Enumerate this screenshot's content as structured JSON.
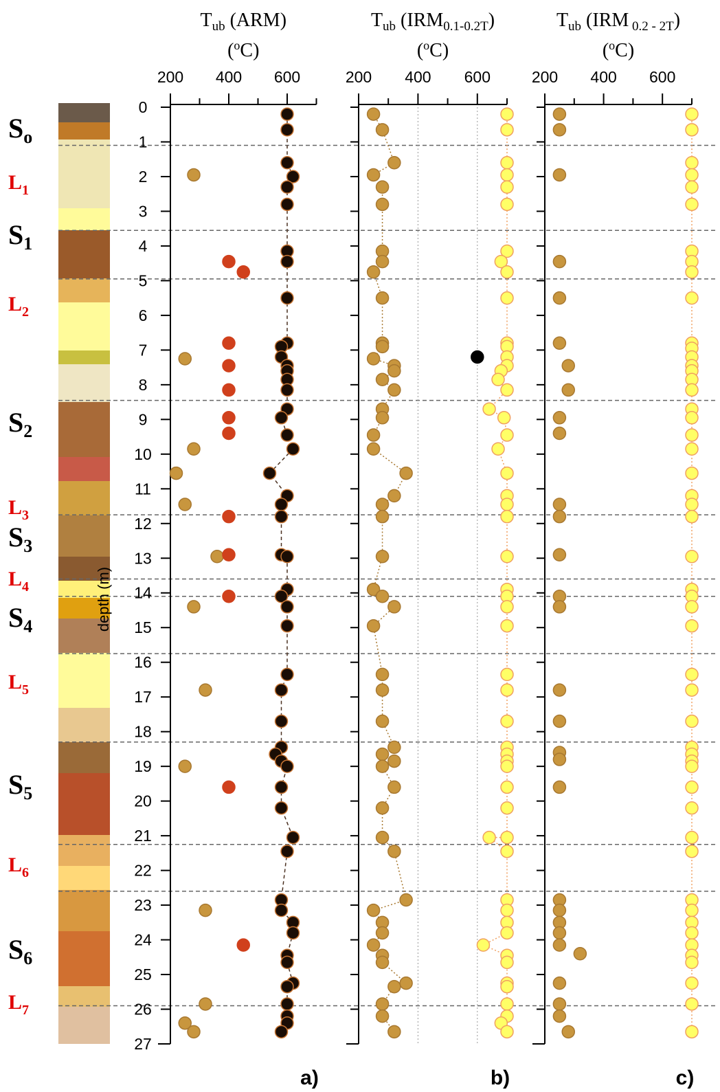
{
  "chart_data": [
    {
      "type": "scatter",
      "letter": "a)",
      "title_parts": [
        {
          "t": "T"
        },
        {
          "t": "ub",
          "sub": true
        },
        {
          "t": " (ARM)"
        }
      ],
      "unit_parts": [
        {
          "t": "("
        },
        {
          "t": "o",
          "sup": true
        },
        {
          "t": "C)"
        }
      ],
      "ylabel": "depth (m)",
      "xlim": [
        200,
        700
      ],
      "xticks": [
        200,
        400,
        600
      ],
      "xminor": [
        300,
        500,
        700
      ],
      "ylim": [
        0,
        27
      ],
      "yticks": [
        0,
        1,
        2,
        3,
        4,
        5,
        6,
        7,
        8,
        9,
        10,
        11,
        12,
        13,
        14,
        15,
        16,
        17,
        18,
        19,
        20,
        21,
        22,
        23,
        24,
        25,
        26,
        27
      ],
      "series": [
        {
          "color": "#c8963e",
          "edge": "#a87830",
          "x": [
            280,
            250,
            280,
            220,
            250,
            360,
            280,
            320,
            250,
            320,
            320,
            250,
            280
          ],
          "y": [
            1.95,
            7.25,
            9.85,
            10.55,
            11.45,
            12.95,
            14.4,
            16.8,
            19.0,
            23.15,
            25.85,
            26.4,
            26.65
          ]
        },
        {
          "color": "#d0401c",
          "edge": "#d0401c",
          "x": [
            400,
            450,
            400,
            400,
            400,
            400,
            400,
            400,
            400,
            400,
            400,
            450
          ],
          "y": [
            4.45,
            4.75,
            6.8,
            7.45,
            8.15,
            8.95,
            9.4,
            11.8,
            12.9,
            14.1,
            19.6,
            24.15
          ]
        },
        {
          "color": "#1a0d05",
          "edge": "#c87533",
          "line": "dashed",
          "x": [
            600,
            600,
            600,
            620,
            600,
            600,
            600,
            600,
            600,
            600,
            580,
            580,
            600,
            600,
            600,
            600,
            600,
            580,
            600,
            620,
            540,
            600,
            580,
            580,
            580,
            600,
            600,
            580,
            600,
            600,
            600,
            580,
            580,
            580,
            560,
            580,
            600,
            580,
            580,
            620,
            600,
            580,
            580,
            620,
            620,
            600,
            600,
            620,
            600,
            600,
            600,
            600,
            580
          ],
          "y": [
            0.2,
            0.65,
            1.6,
            2.0,
            2.3,
            2.8,
            4.15,
            4.45,
            5.5,
            6.8,
            6.9,
            7.2,
            7.45,
            7.6,
            7.85,
            8.15,
            8.7,
            8.95,
            9.45,
            9.85,
            10.55,
            11.2,
            11.45,
            11.8,
            12.9,
            12.95,
            13.9,
            14.1,
            14.4,
            14.95,
            16.35,
            16.8,
            17.7,
            18.45,
            18.65,
            18.85,
            19.0,
            19.6,
            20.2,
            21.05,
            21.45,
            22.85,
            23.15,
            23.5,
            23.8,
            24.45,
            24.65,
            25.25,
            25.35,
            25.85,
            26.2,
            26.4,
            26.65
          ]
        }
      ]
    },
    {
      "type": "scatter",
      "letter": "b)",
      "title_parts": [
        {
          "t": "T"
        },
        {
          "t": "ub",
          "sub": true
        },
        {
          "t": " (IRM"
        },
        {
          "t": "0.1-0.2T",
          "sub": true
        },
        {
          "t": ")"
        }
      ],
      "unit_parts": [
        {
          "t": "("
        },
        {
          "t": "o",
          "sup": true
        },
        {
          "t": "C)"
        }
      ],
      "xlim": [
        200,
        700
      ],
      "xticks": [
        200,
        400,
        600
      ],
      "xminor": [
        300,
        500,
        700
      ],
      "xgrid": [
        400,
        600
      ],
      "ylim": [
        0,
        27
      ],
      "series": [
        {
          "color": "#c8963e",
          "edge": "#a87830",
          "line": "dotted",
          "x": [
            250,
            280,
            320,
            250,
            280,
            280,
            280,
            280,
            250,
            280,
            280,
            280,
            250,
            320,
            320,
            280,
            320,
            280,
            280,
            250,
            250,
            360,
            320,
            280,
            280,
            280,
            250,
            280,
            320,
            250,
            280,
            280,
            280,
            320,
            280,
            320,
            280,
            320,
            280,
            280,
            320,
            360,
            250,
            280,
            280,
            250,
            280,
            280,
            360,
            320,
            280,
            280,
            320
          ],
          "y": [
            0.2,
            0.65,
            1.6,
            1.95,
            2.3,
            2.8,
            4.15,
            4.45,
            4.75,
            5.5,
            6.8,
            6.9,
            7.25,
            7.45,
            7.6,
            7.85,
            8.15,
            8.7,
            8.95,
            9.45,
            9.85,
            10.55,
            11.2,
            11.45,
            11.8,
            12.95,
            13.9,
            14.1,
            14.4,
            14.95,
            16.35,
            16.8,
            17.7,
            18.45,
            18.65,
            18.85,
            19.0,
            19.6,
            20.2,
            21.05,
            21.45,
            22.85,
            23.15,
            23.5,
            23.8,
            24.15,
            24.45,
            24.65,
            25.25,
            25.35,
            25.85,
            26.2,
            26.65
          ]
        },
        {
          "color": "#ffff66",
          "edge": "#f0a060",
          "line": "dotted",
          "x": [
            700,
            700,
            700,
            700,
            700,
            700,
            700,
            680,
            700,
            700,
            700,
            700,
            700,
            700,
            680,
            670,
            700,
            640,
            690,
            700,
            670,
            700,
            700,
            700,
            700,
            700,
            700,
            700,
            700,
            700,
            700,
            700,
            700,
            700,
            700,
            700,
            700,
            700,
            700,
            700,
            640,
            700,
            700,
            700,
            700,
            700,
            620,
            700,
            700,
            700,
            700,
            700,
            700,
            680,
            700
          ],
          "y": [
            0.2,
            0.65,
            1.6,
            1.95,
            2.3,
            2.8,
            4.15,
            4.45,
            4.75,
            5.5,
            6.8,
            6.9,
            7.2,
            7.45,
            7.6,
            7.85,
            8.15,
            8.7,
            8.95,
            9.45,
            9.85,
            10.55,
            11.2,
            11.45,
            11.8,
            12.95,
            13.9,
            14.1,
            14.4,
            14.95,
            16.35,
            16.8,
            17.7,
            18.45,
            18.65,
            18.85,
            19.0,
            19.6,
            20.2,
            21.05,
            21.05,
            21.45,
            22.85,
            23.15,
            23.5,
            23.8,
            24.15,
            24.45,
            24.65,
            25.25,
            25.35,
            25.85,
            26.2,
            26.4,
            26.65
          ]
        },
        {
          "color": "#000000",
          "edge": "#000000",
          "x": [
            600
          ],
          "y": [
            7.2
          ]
        }
      ]
    },
    {
      "type": "scatter",
      "letter": "c)",
      "title_parts": [
        {
          "t": "T"
        },
        {
          "t": "ub",
          "sub": true
        },
        {
          "t": " (IRM"
        },
        {
          "t": " 0.2 - 2T",
          "sub": true
        },
        {
          "t": ")"
        }
      ],
      "unit_parts": [
        {
          "t": "("
        },
        {
          "t": "o",
          "sup": true
        },
        {
          "t": "C)"
        }
      ],
      "xlim": [
        200,
        700
      ],
      "xticks": [
        200,
        400,
        600
      ],
      "xminor": [
        300,
        500,
        700
      ],
      "ylim": [
        0,
        27
      ],
      "series": [
        {
          "color": "#c8963e",
          "edge": "#a87830",
          "x": [
            250,
            250,
            250,
            250,
            250,
            250,
            280,
            280,
            250,
            250,
            250,
            250,
            250,
            250,
            250,
            250,
            250,
            250,
            250,
            250,
            250,
            250,
            250,
            250,
            250,
            320,
            250,
            250,
            250,
            280
          ],
          "y": [
            0.2,
            0.65,
            1.95,
            4.45,
            5.5,
            6.8,
            7.45,
            8.15,
            8.95,
            9.4,
            11.45,
            11.8,
            12.9,
            14.1,
            14.4,
            16.8,
            17.7,
            18.6,
            18.8,
            19.6,
            22.85,
            23.15,
            23.5,
            23.8,
            24.15,
            24.4,
            25.25,
            25.85,
            26.2,
            26.65
          ]
        },
        {
          "color": "#ffff66",
          "edge": "#f0a060",
          "line": "dotted",
          "x": [
            700,
            700,
            700,
            700,
            700,
            700,
            700,
            700,
            700,
            700,
            700,
            700,
            700,
            700,
            700,
            700,
            700,
            700,
            700,
            700,
            700,
            700,
            700,
            700,
            700,
            700,
            700,
            700,
            700,
            700,
            700,
            700,
            700,
            700,
            700,
            700,
            700,
            700,
            700,
            700,
            700,
            700,
            700,
            700,
            700,
            700,
            700,
            700,
            700,
            700,
            700
          ],
          "y": [
            0.2,
            0.65,
            1.6,
            1.95,
            2.3,
            2.8,
            4.15,
            4.45,
            4.75,
            5.5,
            6.8,
            6.95,
            7.2,
            7.45,
            7.6,
            7.85,
            8.15,
            8.7,
            8.95,
            9.45,
            9.85,
            10.55,
            11.2,
            11.45,
            11.8,
            12.95,
            13.9,
            14.1,
            14.4,
            14.95,
            16.35,
            16.8,
            17.7,
            18.45,
            18.65,
            18.85,
            19.0,
            19.6,
            20.2,
            21.05,
            21.45,
            22.85,
            23.15,
            23.5,
            23.8,
            24.15,
            24.45,
            24.65,
            25.25,
            25.85,
            26.65
          ]
        }
      ]
    }
  ],
  "boundaries": [
    1.1,
    3.55,
    4.95,
    8.45,
    11.75,
    13.6,
    14.1,
    15.75,
    18.3,
    21.25,
    22.6,
    25.9
  ],
  "units": [
    {
      "main": "S",
      "sub": "o",
      "color": "#000000"
    },
    {
      "main": "L",
      "sub": "1",
      "color": "#e00000"
    },
    {
      "main": "S",
      "sub": "1",
      "color": "#000000"
    },
    {
      "main": "L",
      "sub": "2",
      "color": "#e00000"
    },
    {
      "main": "S",
      "sub": "2",
      "color": "#000000"
    },
    {
      "main": "L",
      "sub": "3",
      "color": "#e00000"
    },
    {
      "main": "S",
      "sub": "3",
      "color": "#000000"
    },
    {
      "main": "L",
      "sub": "4",
      "color": "#e00000"
    },
    {
      "main": "S",
      "sub": "4",
      "color": "#000000"
    },
    {
      "main": "L",
      "sub": "5",
      "color": "#e00000"
    },
    {
      "main": "S",
      "sub": "5",
      "color": "#000000"
    },
    {
      "main": "L",
      "sub": "6",
      "color": "#e00000"
    },
    {
      "main": "S",
      "sub": "6",
      "color": "#000000"
    },
    {
      "main": "L",
      "sub": "7",
      "color": "#e00000"
    }
  ]
}
